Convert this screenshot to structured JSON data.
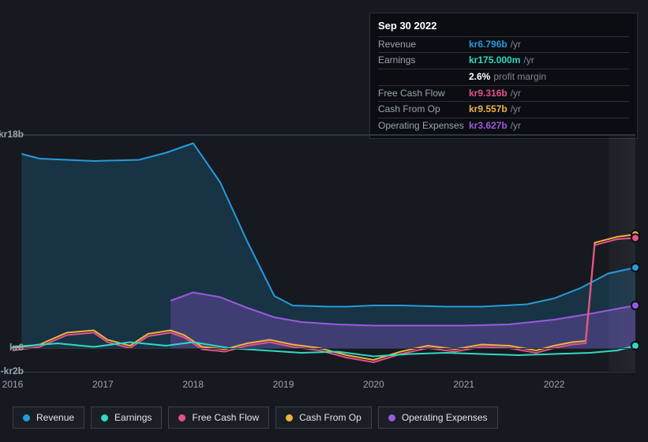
{
  "colors": {
    "revenue": "#259bdb",
    "earnings": "#2fd9c4",
    "free_cash_flow": "#e84f8a",
    "cash_from_op": "#eeb33e",
    "operating_expenses": "#9b59e0",
    "background": "#16191f",
    "tooltip_bg": "#0b0d12",
    "grid": "#2f3640",
    "text_muted": "#9aa4b1"
  },
  "tooltip": {
    "date": "Sep 30 2022",
    "rows": [
      {
        "label": "Revenue",
        "value": "kr6.796b",
        "suffix": "/yr",
        "color": "#259bdb"
      },
      {
        "label": "Earnings",
        "value": "kr175.000m",
        "suffix": "/yr",
        "color": "#2fd9c4"
      },
      {
        "label": "",
        "value": "2.6%",
        "suffix": "profit margin",
        "color": "#ffffff"
      },
      {
        "label": "Free Cash Flow",
        "value": "kr9.316b",
        "suffix": "/yr",
        "color": "#e84f8a"
      },
      {
        "label": "Cash From Op",
        "value": "kr9.557b",
        "suffix": "/yr",
        "color": "#eeb33e"
      },
      {
        "label": "Operating Expenses",
        "value": "kr3.627b",
        "suffix": "/yr",
        "color": "#9b59e0"
      }
    ]
  },
  "chart": {
    "type": "line-area",
    "x_domain": [
      2016,
      2022.9
    ],
    "y_domain": [
      -2,
      18
    ],
    "y_ticks": [
      {
        "v": 18,
        "label": "kr18b"
      },
      {
        "v": 0,
        "label": "kr0"
      },
      {
        "v": -2,
        "label": "-kr2b"
      }
    ],
    "x_ticks": [
      2016,
      2017,
      2018,
      2019,
      2020,
      2021,
      2022
    ],
    "highlight_band": {
      "from": 2022.6,
      "to": 2022.9
    },
    "series": [
      {
        "key": "revenue",
        "label": "Revenue",
        "color": "#259bdb",
        "area": true,
        "area_opacity": 0.2,
        "points": [
          [
            2016.1,
            16.4
          ],
          [
            2016.3,
            16.0
          ],
          [
            2016.9,
            15.8
          ],
          [
            2017.4,
            15.9
          ],
          [
            2017.7,
            16.5
          ],
          [
            2018.0,
            17.3
          ],
          [
            2018.3,
            14.0
          ],
          [
            2018.6,
            9.0
          ],
          [
            2018.9,
            4.4
          ],
          [
            2019.1,
            3.6
          ],
          [
            2019.5,
            3.5
          ],
          [
            2019.7,
            3.5
          ],
          [
            2020.0,
            3.6
          ],
          [
            2020.3,
            3.6
          ],
          [
            2020.8,
            3.5
          ],
          [
            2021.2,
            3.5
          ],
          [
            2021.7,
            3.7
          ],
          [
            2022.0,
            4.2
          ],
          [
            2022.3,
            5.1
          ],
          [
            2022.6,
            6.3
          ],
          [
            2022.9,
            6.8
          ]
        ],
        "end_dot": true
      },
      {
        "key": "operating_expenses",
        "label": "Operating Expenses",
        "color": "#9b59e0",
        "area": true,
        "area_opacity": 0.3,
        "start_x": 2017.75,
        "points": [
          [
            2017.75,
            4.0
          ],
          [
            2018.0,
            4.7
          ],
          [
            2018.3,
            4.3
          ],
          [
            2018.6,
            3.4
          ],
          [
            2018.9,
            2.6
          ],
          [
            2019.2,
            2.2
          ],
          [
            2019.6,
            2.0
          ],
          [
            2020.0,
            1.9
          ],
          [
            2020.5,
            1.9
          ],
          [
            2021.0,
            1.9
          ],
          [
            2021.5,
            2.0
          ],
          [
            2022.0,
            2.4
          ],
          [
            2022.4,
            2.9
          ],
          [
            2022.9,
            3.6
          ]
        ],
        "end_dot": true
      },
      {
        "key": "cash_from_op",
        "label": "Cash From Op",
        "color": "#eeb33e",
        "points": [
          [
            2016.0,
            0.0
          ],
          [
            2016.3,
            0.3
          ],
          [
            2016.6,
            1.3
          ],
          [
            2016.9,
            1.5
          ],
          [
            2017.05,
            0.7
          ],
          [
            2017.3,
            0.2
          ],
          [
            2017.5,
            1.2
          ],
          [
            2017.75,
            1.5
          ],
          [
            2017.9,
            1.1
          ],
          [
            2018.1,
            0.1
          ],
          [
            2018.35,
            -0.1
          ],
          [
            2018.6,
            0.4
          ],
          [
            2018.85,
            0.7
          ],
          [
            2019.1,
            0.3
          ],
          [
            2019.4,
            0.0
          ],
          [
            2019.7,
            -0.6
          ],
          [
            2020.0,
            -1.0
          ],
          [
            2020.3,
            -0.3
          ],
          [
            2020.6,
            0.2
          ],
          [
            2020.9,
            -0.1
          ],
          [
            2021.2,
            0.3
          ],
          [
            2021.5,
            0.2
          ],
          [
            2021.8,
            -0.2
          ],
          [
            2022.0,
            0.2
          ],
          [
            2022.2,
            0.5
          ],
          [
            2022.35,
            0.6
          ],
          [
            2022.45,
            8.9
          ],
          [
            2022.7,
            9.4
          ],
          [
            2022.9,
            9.6
          ]
        ],
        "end_dot": true
      },
      {
        "key": "free_cash_flow",
        "label": "Free Cash Flow",
        "color": "#e84f8a",
        "points": [
          [
            2016.0,
            -0.2
          ],
          [
            2016.3,
            0.1
          ],
          [
            2016.6,
            1.1
          ],
          [
            2016.9,
            1.3
          ],
          [
            2017.05,
            0.5
          ],
          [
            2017.3,
            0.0
          ],
          [
            2017.5,
            1.0
          ],
          [
            2017.75,
            1.3
          ],
          [
            2017.9,
            0.9
          ],
          [
            2018.1,
            -0.1
          ],
          [
            2018.35,
            -0.3
          ],
          [
            2018.6,
            0.2
          ],
          [
            2018.85,
            0.5
          ],
          [
            2019.1,
            0.1
          ],
          [
            2019.4,
            -0.2
          ],
          [
            2019.7,
            -0.8
          ],
          [
            2020.0,
            -1.2
          ],
          [
            2020.3,
            -0.5
          ],
          [
            2020.6,
            0.0
          ],
          [
            2020.9,
            -0.3
          ],
          [
            2021.2,
            0.1
          ],
          [
            2021.5,
            0.0
          ],
          [
            2021.8,
            -0.4
          ],
          [
            2022.0,
            0.0
          ],
          [
            2022.2,
            0.3
          ],
          [
            2022.35,
            0.4
          ],
          [
            2022.45,
            8.7
          ],
          [
            2022.7,
            9.2
          ],
          [
            2022.9,
            9.3
          ]
        ],
        "end_dot": true
      },
      {
        "key": "earnings",
        "label": "Earnings",
        "color": "#2fd9c4",
        "points": [
          [
            2016.0,
            0.1
          ],
          [
            2016.5,
            0.4
          ],
          [
            2016.9,
            0.1
          ],
          [
            2017.3,
            0.5
          ],
          [
            2017.7,
            0.2
          ],
          [
            2018.0,
            0.5
          ],
          [
            2018.4,
            0.0
          ],
          [
            2018.8,
            -0.2
          ],
          [
            2019.2,
            -0.4
          ],
          [
            2019.6,
            -0.3
          ],
          [
            2020.0,
            -0.7
          ],
          [
            2020.4,
            -0.5
          ],
          [
            2020.8,
            -0.4
          ],
          [
            2021.2,
            -0.5
          ],
          [
            2021.6,
            -0.6
          ],
          [
            2022.0,
            -0.5
          ],
          [
            2022.4,
            -0.4
          ],
          [
            2022.7,
            -0.2
          ],
          [
            2022.9,
            0.2
          ]
        ],
        "end_dot": true
      }
    ],
    "legend": [
      {
        "key": "revenue",
        "label": "Revenue"
      },
      {
        "key": "earnings",
        "label": "Earnings"
      },
      {
        "key": "free_cash_flow",
        "label": "Free Cash Flow"
      },
      {
        "key": "cash_from_op",
        "label": "Cash From Op"
      },
      {
        "key": "operating_expenses",
        "label": "Operating Expenses"
      }
    ]
  }
}
